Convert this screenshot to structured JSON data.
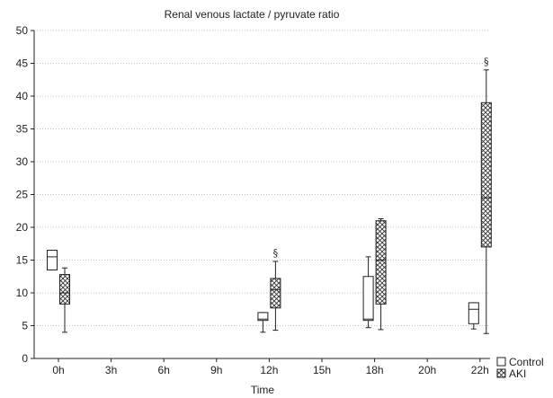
{
  "chart_data": {
    "type": "boxplot",
    "title": "Renal venous lactate / pyruvate ratio",
    "xlabel": "Time",
    "ylabel": "",
    "categories": [
      "0h",
      "3h",
      "6h",
      "9h",
      "12h",
      "15h",
      "18h",
      "20h",
      "22h"
    ],
    "ylim": [
      0,
      50
    ],
    "yticks": [
      0,
      5,
      10,
      15,
      20,
      25,
      30,
      35,
      40,
      45,
      50
    ],
    "grid": true,
    "legend_position": "bottom-right",
    "series": [
      {
        "name": "Control",
        "pattern": "plain",
        "boxes": [
          {
            "category": "0h",
            "min": 13.5,
            "q1": 13.5,
            "median": 15.5,
            "q3": 16.5,
            "max": 16.5
          },
          {
            "category": "12h",
            "min": 4.0,
            "q1": 5.8,
            "median": 6.0,
            "q3": 7.0,
            "max": 7.0
          },
          {
            "category": "18h",
            "min": 4.7,
            "q1": 5.8,
            "median": 6.0,
            "q3": 12.5,
            "max": 15.5
          },
          {
            "category": "22h",
            "min": 4.5,
            "q1": 5.3,
            "median": 7.5,
            "q3": 8.5,
            "max": 8.5
          }
        ]
      },
      {
        "name": "AKI",
        "pattern": "crosshatch",
        "boxes": [
          {
            "category": "0h",
            "min": 4.0,
            "q1": 8.3,
            "median": 10.0,
            "q3": 12.8,
            "max": 13.8
          },
          {
            "category": "12h",
            "min": 4.3,
            "q1": 7.7,
            "median": 10.5,
            "q3": 12.2,
            "max": 14.8
          },
          {
            "category": "18h",
            "min": 4.4,
            "q1": 8.3,
            "median": 15.0,
            "q3": 21.0,
            "max": 21.3
          },
          {
            "category": "22h",
            "min": 3.8,
            "q1": 17.0,
            "median": 24.5,
            "q3": 39.0,
            "max": 44.0
          }
        ]
      }
    ],
    "annotations": [
      {
        "category": "12h",
        "series": "AKI",
        "text": "§"
      },
      {
        "category": "22h",
        "series": "AKI",
        "text": "§"
      }
    ]
  }
}
